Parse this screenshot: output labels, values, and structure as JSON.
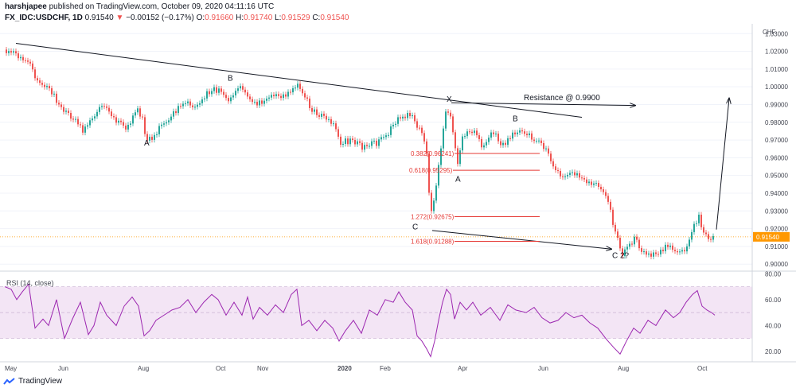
{
  "header": {
    "author": "harshjapee",
    "published": "published on TradingView.com, October 09, 2020 04:11:16 UTC",
    "symbol": "FX_IDC:USDCHF, 1D",
    "last": "0.91540",
    "change_arrow": "▼",
    "change": "−0.00152 (−0.17%)",
    "o_label": "O:",
    "o_value": "0.91660",
    "h_label": "H:",
    "h_value": "0.91740",
    "l_label": "L:",
    "l_value": "0.91529",
    "c_label": "C:",
    "c_value": "0.91540"
  },
  "footer": {
    "brand": "TradingView",
    "logo_icon": "tradingview-logo-icon"
  },
  "colors": {
    "up": "#26a69a",
    "down": "#ef5350",
    "rsi_line": "#9c27b0",
    "rsi_band": "#f3e5f5",
    "fib": "#e53935"
  },
  "chart_data": [
    {
      "type": "candlestick",
      "currency_label": "CHF",
      "x_tick_labels": [
        "May",
        "Jun",
        "Aug",
        "Oct",
        "Nov",
        "2020",
        "Feb",
        "Apr",
        "Jun",
        "Aug",
        "Oct"
      ],
      "y_ticks": [
        0.9,
        0.91,
        0.92,
        0.93,
        0.94,
        0.95,
        0.96,
        0.97,
        0.98,
        0.99,
        1.0,
        1.01,
        1.02,
        1.03
      ],
      "ylim": [
        0.8965,
        1.0355
      ],
      "last_price_label": "0.91540",
      "close_path": [
        [
          0,
          1.021
        ],
        [
          8,
          1.02
        ],
        [
          18,
          1.016
        ],
        [
          32,
          1.014
        ],
        [
          40,
          1.002
        ],
        [
          55,
          1.0
        ],
        [
          70,
          0.989
        ],
        [
          85,
          0.982
        ],
        [
          100,
          0.975
        ],
        [
          112,
          0.985
        ],
        [
          125,
          0.988
        ],
        [
          140,
          0.98
        ],
        [
          155,
          0.977
        ],
        [
          165,
          0.988
        ],
        [
          172,
          0.984
        ],
        [
          178,
          0.97
        ],
        [
          186,
          0.972
        ],
        [
          198,
          0.978
        ],
        [
          210,
          0.984
        ],
        [
          225,
          0.991
        ],
        [
          240,
          0.989
        ],
        [
          255,
          0.996
        ],
        [
          268,
          0.999
        ],
        [
          280,
          0.993
        ],
        [
          295,
          0.999
        ],
        [
          310,
          0.991
        ],
        [
          325,
          0.991
        ],
        [
          340,
          0.995
        ],
        [
          355,
          0.995
        ],
        [
          365,
          1.001
        ],
        [
          372,
          0.999
        ],
        [
          385,
          0.987
        ],
        [
          400,
          0.983
        ],
        [
          412,
          0.979
        ],
        [
          422,
          0.968
        ],
        [
          435,
          0.97
        ],
        [
          450,
          0.966
        ],
        [
          465,
          0.968
        ],
        [
          478,
          0.972
        ],
        [
          490,
          0.98
        ],
        [
          505,
          0.984
        ],
        [
          512,
          0.984
        ],
        [
          518,
          0.978
        ],
        [
          525,
          0.972
        ],
        [
          530,
          0.963
        ],
        [
          535,
          0.928
        ],
        [
          540,
          0.94
        ],
        [
          545,
          0.955
        ],
        [
          550,
          0.97
        ],
        [
          554,
          0.988
        ],
        [
          558,
          0.985
        ],
        [
          563,
          0.976
        ],
        [
          568,
          0.955
        ],
        [
          575,
          0.972
        ],
        [
          582,
          0.976
        ],
        [
          590,
          0.974
        ],
        [
          600,
          0.966
        ],
        [
          615,
          0.975
        ],
        [
          628,
          0.965
        ],
        [
          638,
          0.975
        ],
        [
          652,
          0.974
        ],
        [
          666,
          0.97
        ],
        [
          678,
          0.965
        ],
        [
          690,
          0.955
        ],
        [
          700,
          0.948
        ],
        [
          710,
          0.95
        ],
        [
          720,
          0.95
        ],
        [
          732,
          0.945
        ],
        [
          745,
          0.944
        ],
        [
          755,
          0.94
        ],
        [
          765,
          0.922
        ],
        [
          775,
          0.905
        ],
        [
          782,
          0.91
        ],
        [
          790,
          0.914
        ],
        [
          798,
          0.91
        ],
        [
          808,
          0.904
        ],
        [
          818,
          0.906
        ],
        [
          830,
          0.91
        ],
        [
          842,
          0.908
        ],
        [
          852,
          0.907
        ],
        [
          860,
          0.914
        ],
        [
          866,
          0.923
        ],
        [
          872,
          0.927
        ],
        [
          878,
          0.918
        ],
        [
          886,
          0.915
        ],
        [
          892,
          0.9154
        ]
      ],
      "annotations": [
        {
          "text": "A",
          "t": 175,
          "v": 0.967
        },
        {
          "text": "B",
          "t": 280,
          "v": 1.0035
        },
        {
          "text": "X",
          "t": 555,
          "v": 0.9915
        },
        {
          "text": "A",
          "t": 566,
          "v": 0.9465
        },
        {
          "text": "B",
          "t": 638,
          "v": 0.9805
        },
        {
          "text": "C",
          "t": 512,
          "v": 0.9195
        },
        {
          "text": "C 2?",
          "t": 763,
          "v": 0.9035
        },
        {
          "text": "Resistance @ 0.9900",
          "t": 652,
          "v": 0.9925
        }
      ],
      "trendlines": [
        {
          "from": [
            14,
            1.0245
          ],
          "to": [
            725,
            0.9828
          ],
          "arrow": false
        },
        {
          "from": [
            561,
            0.991
          ],
          "to": [
            792,
            0.9895
          ],
          "arrow": true
        },
        {
          "from": [
            537,
            0.919
          ],
          "to": [
            762,
            0.9085
          ],
          "arrow": true
        },
        {
          "from": [
            894,
            0.9195
          ],
          "to": [
            910,
            0.9935
          ],
          "arrow": true
        }
      ],
      "fib_levels": [
        {
          "label": "0.382(0.96241)",
          "value": 0.96241,
          "t_label": 510,
          "t_end": 672
        },
        {
          "label": "0.618(0.95295)",
          "value": 0.95295,
          "t_label": 508,
          "t_end": 672
        },
        {
          "label": "1.272(0.92675)",
          "value": 0.92675,
          "t_label": 510,
          "t_end": 672
        },
        {
          "label": "1.618(0.91288)",
          "value": 0.91288,
          "t_label": 510,
          "t_end": 672
        }
      ]
    },
    {
      "type": "line",
      "title": "RSI (14, close)",
      "y_ticks": [
        20.0,
        40.0,
        60.0,
        80.0
      ],
      "ylim": [
        12,
        82
      ],
      "band": [
        30,
        70
      ],
      "mid": 50,
      "path": [
        [
          0,
          70
        ],
        [
          8,
          68
        ],
        [
          15,
          60
        ],
        [
          22,
          66
        ],
        [
          30,
          72
        ],
        [
          38,
          38
        ],
        [
          48,
          45
        ],
        [
          55,
          40
        ],
        [
          65,
          60
        ],
        [
          75,
          30
        ],
        [
          85,
          45
        ],
        [
          95,
          58
        ],
        [
          105,
          33
        ],
        [
          112,
          40
        ],
        [
          120,
          58
        ],
        [
          128,
          48
        ],
        [
          140,
          40
        ],
        [
          150,
          55
        ],
        [
          160,
          62
        ],
        [
          168,
          55
        ],
        [
          175,
          32
        ],
        [
          182,
          36
        ],
        [
          190,
          44
        ],
        [
          200,
          48
        ],
        [
          210,
          52
        ],
        [
          220,
          54
        ],
        [
          230,
          60
        ],
        [
          240,
          50
        ],
        [
          250,
          58
        ],
        [
          260,
          64
        ],
        [
          268,
          60
        ],
        [
          278,
          48
        ],
        [
          288,
          58
        ],
        [
          298,
          48
        ],
        [
          305,
          62
        ],
        [
          312,
          45
        ],
        [
          320,
          54
        ],
        [
          330,
          48
        ],
        [
          340,
          56
        ],
        [
          350,
          50
        ],
        [
          360,
          64
        ],
        [
          367,
          68
        ],
        [
          373,
          40
        ],
        [
          382,
          44
        ],
        [
          392,
          36
        ],
        [
          402,
          44
        ],
        [
          412,
          38
        ],
        [
          420,
          28
        ],
        [
          428,
          36
        ],
        [
          438,
          44
        ],
        [
          448,
          34
        ],
        [
          458,
          52
        ],
        [
          468,
          48
        ],
        [
          478,
          60
        ],
        [
          488,
          58
        ],
        [
          495,
          66
        ],
        [
          503,
          58
        ],
        [
          512,
          52
        ],
        [
          518,
          32
        ],
        [
          524,
          28
        ],
        [
          530,
          22
        ],
        [
          535,
          16
        ],
        [
          540,
          28
        ],
        [
          545,
          44
        ],
        [
          550,
          58
        ],
        [
          555,
          68
        ],
        [
          560,
          64
        ],
        [
          565,
          45
        ],
        [
          572,
          58
        ],
        [
          580,
          52
        ],
        [
          588,
          58
        ],
        [
          598,
          48
        ],
        [
          610,
          54
        ],
        [
          622,
          44
        ],
        [
          632,
          56
        ],
        [
          642,
          52
        ],
        [
          655,
          50
        ],
        [
          665,
          54
        ],
        [
          675,
          46
        ],
        [
          685,
          42
        ],
        [
          695,
          44
        ],
        [
          705,
          50
        ],
        [
          715,
          46
        ],
        [
          725,
          48
        ],
        [
          735,
          42
        ],
        [
          745,
          38
        ],
        [
          755,
          30
        ],
        [
          765,
          23
        ],
        [
          773,
          18
        ],
        [
          781,
          28
        ],
        [
          790,
          38
        ],
        [
          798,
          34
        ],
        [
          808,
          44
        ],
        [
          818,
          40
        ],
        [
          830,
          52
        ],
        [
          840,
          46
        ],
        [
          848,
          50
        ],
        [
          856,
          58
        ],
        [
          864,
          64
        ],
        [
          870,
          67
        ],
        [
          876,
          55
        ],
        [
          882,
          52
        ],
        [
          888,
          50
        ],
        [
          892,
          48
        ]
      ]
    }
  ]
}
